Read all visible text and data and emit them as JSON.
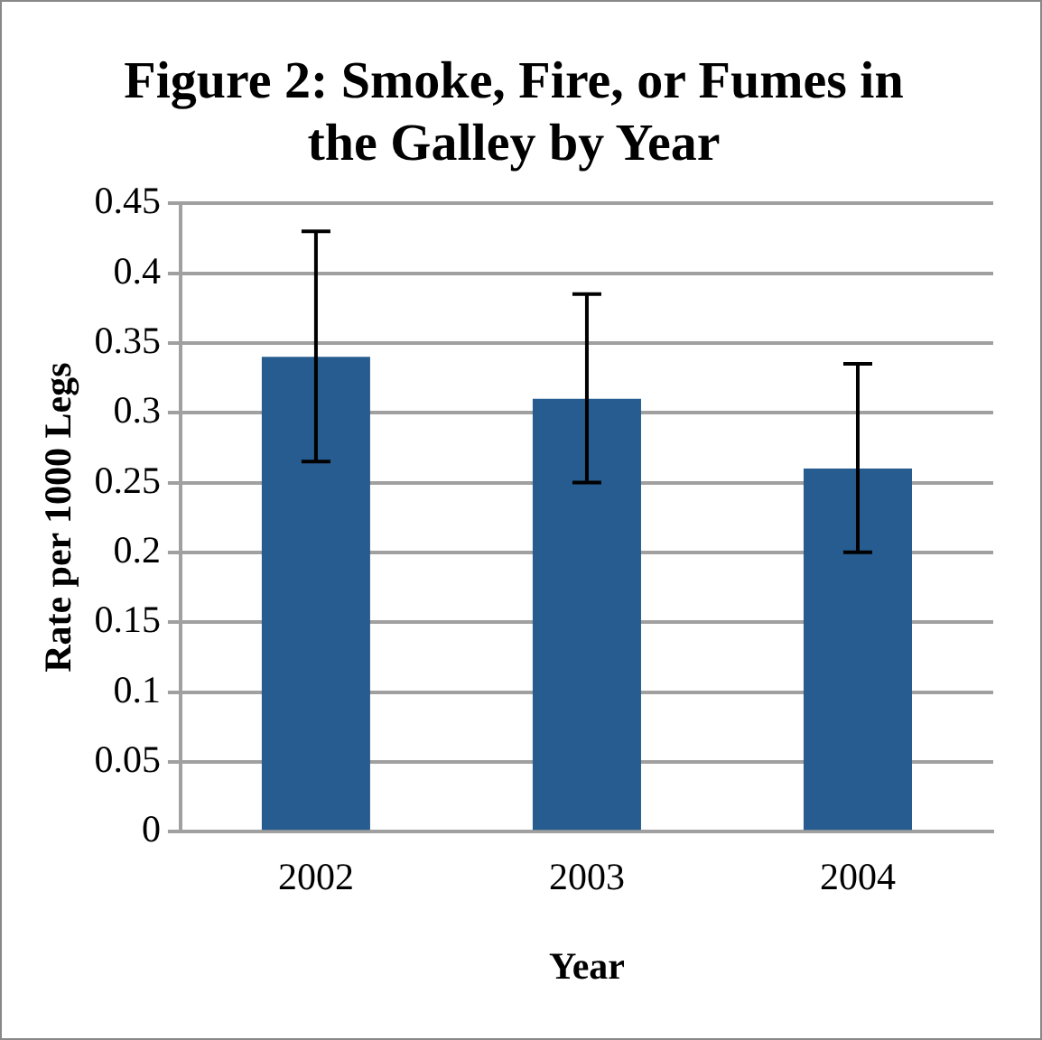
{
  "chart_data": {
    "type": "bar",
    "title": "Figure 2: Smoke, Fire, or Fumes in the Galley by Year",
    "xlabel": "Year",
    "ylabel": "Rate per 1000 Legs",
    "categories": [
      "2002",
      "2003",
      "2004"
    ],
    "values": [
      0.34,
      0.31,
      0.26
    ],
    "errors": [
      [
        0.265,
        0.43
      ],
      [
        0.25,
        0.385
      ],
      [
        0.2,
        0.335
      ]
    ],
    "color": "#265c8f",
    "ylim": [
      0,
      0.45
    ],
    "yticks": [
      0,
      0.05,
      0.1,
      0.15,
      0.2,
      0.25,
      0.3,
      0.35,
      0.4,
      0.45
    ],
    "grid": "y",
    "legend": false
  }
}
